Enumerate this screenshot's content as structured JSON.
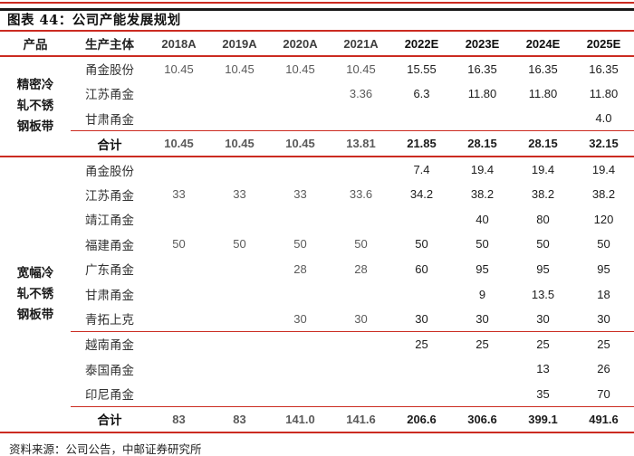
{
  "title": "图表 44：公司产能发展规划",
  "source_note": "资料来源：公司公告，中邮证券研究所",
  "colors": {
    "rule_red": "#cb2b21",
    "rule_black": "#1a1a1a",
    "historical_value": "#5a5a5a",
    "forecast_value": "#1c1c1c"
  },
  "table": {
    "headers": {
      "product": "产品",
      "entity": "生产主体",
      "years": [
        "2018A",
        "2019A",
        "2020A",
        "2021A",
        "2022E",
        "2023E",
        "2024E",
        "2025E"
      ],
      "forecast_start_index": 4
    },
    "subtotal_label": "合计",
    "groups": [
      {
        "product": "精密冷轧不锈钢板带",
        "rows": [
          {
            "entity": "甬金股份",
            "values": [
              "10.45",
              "10.45",
              "10.45",
              "10.45",
              "15.55",
              "16.35",
              "16.35",
              "16.35"
            ]
          },
          {
            "entity": "江苏甬金",
            "values": [
              "",
              "",
              "",
              "3.36",
              "6.3",
              "11.80",
              "11.80",
              "11.80"
            ]
          },
          {
            "entity": "甘肃甬金",
            "values": [
              "",
              "",
              "",
              "",
              "",
              "",
              "",
              "4.0"
            ]
          }
        ],
        "subtotal": [
          "10.45",
          "10.45",
          "10.45",
          "13.81",
          "21.85",
          "28.15",
          "28.15",
          "32.15"
        ]
      },
      {
        "product": "宽幅冷轧不锈钢板带",
        "rows": [
          {
            "entity": "甬金股份",
            "values": [
              "",
              "",
              "",
              "",
              "7.4",
              "19.4",
              "19.4",
              "19.4"
            ]
          },
          {
            "entity": "江苏甬金",
            "values": [
              "33",
              "33",
              "33",
              "33.6",
              "34.2",
              "38.2",
              "38.2",
              "38.2"
            ]
          },
          {
            "entity": "靖江甬金",
            "values": [
              "",
              "",
              "",
              "",
              "",
              "40",
              "80",
              "120"
            ]
          },
          {
            "entity": "福建甬金",
            "values": [
              "50",
              "50",
              "50",
              "50",
              "50",
              "50",
              "50",
              "50"
            ]
          },
          {
            "entity": "广东甬金",
            "values": [
              "",
              "",
              "28",
              "28",
              "60",
              "95",
              "95",
              "95"
            ]
          },
          {
            "entity": "甘肃甬金",
            "values": [
              "",
              "",
              "",
              "",
              "",
              "9",
              "13.5",
              "18"
            ]
          },
          {
            "entity": "青拓上克",
            "values": [
              "",
              "",
              "30",
              "30",
              "30",
              "30",
              "30",
              "30"
            ]
          },
          {
            "entity": "越南甬金",
            "divider_before": true,
            "values": [
              "",
              "",
              "",
              "",
              "25",
              "25",
              "25",
              "25"
            ]
          },
          {
            "entity": "泰国甬金",
            "values": [
              "",
              "",
              "",
              "",
              "",
              "",
              "13",
              "26"
            ]
          },
          {
            "entity": "印尼甬金",
            "values": [
              "",
              "",
              "",
              "",
              "",
              "",
              "35",
              "70"
            ]
          }
        ],
        "subtotal": [
          "83",
          "83",
          "141.0",
          "141.6",
          "206.6",
          "306.6",
          "399.1",
          "491.6"
        ]
      }
    ]
  }
}
